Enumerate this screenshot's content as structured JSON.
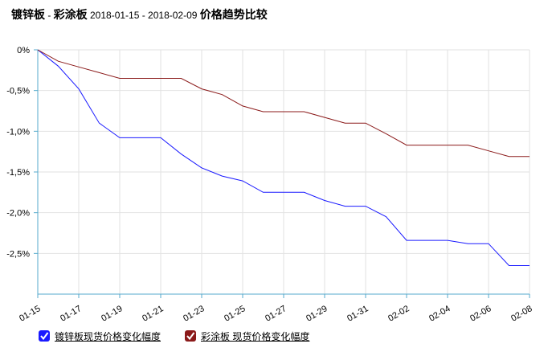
{
  "title": {
    "series_a": "镀锌板",
    "sep": " - ",
    "series_b": "彩涂板",
    "date_range": " 2018-01-15 - 2018-02-09 ",
    "suffix": "价格趋势比较"
  },
  "legend": [
    {
      "label": "镀锌板现货价格变化幅度",
      "color": "#1a1aff"
    },
    {
      "label": "彩涂板 现货价格变化幅度",
      "color": "#8b1a1a"
    }
  ],
  "chart_data": {
    "type": "line",
    "title": "镀锌板 - 彩涂板 2018-01-15 - 2018-02-09 价格趋势比较",
    "ylim": [
      -3.0,
      0.0
    ],
    "yticks": [
      0,
      -0.5,
      -1.0,
      -1.5,
      -2.0,
      -2.5
    ],
    "ytick_labels": [
      "0%",
      "-0,5%",
      "-1,0%",
      "-1,5%",
      "-2,0%",
      "-2,5%"
    ],
    "xtick_labels": [
      "01-15",
      "01-17",
      "01-19",
      "01-21",
      "01-23",
      "01-25",
      "01-27",
      "01-29",
      "01-31",
      "02-02",
      "02-04",
      "02-06",
      "02-08"
    ],
    "x": [
      "01-15",
      "01-16",
      "01-17",
      "01-18",
      "01-19",
      "01-20",
      "01-21",
      "01-22",
      "01-23",
      "01-24",
      "01-25",
      "01-26",
      "01-27",
      "01-28",
      "01-29",
      "01-30",
      "01-31",
      "02-01",
      "02-02",
      "02-03",
      "02-04",
      "02-05",
      "02-06",
      "02-07",
      "02-08"
    ],
    "series": [
      {
        "name": "镀锌板现货价格变化幅度",
        "color": "#1a1aff",
        "values": [
          0,
          -0.2,
          -0.48,
          -0.9,
          -1.08,
          -1.08,
          -1.08,
          -1.28,
          -1.45,
          -1.55,
          -1.61,
          -1.75,
          -1.75,
          -1.75,
          -1.85,
          -1.92,
          -1.92,
          -2.05,
          -2.34,
          -2.34,
          -2.34,
          -2.38,
          -2.38,
          -2.65,
          -2.65
        ]
      },
      {
        "name": "彩涂板 现货价格变化幅度",
        "color": "#8b1a1a",
        "values": [
          0,
          -0.14,
          -0.21,
          -0.28,
          -0.35,
          -0.35,
          -0.35,
          -0.35,
          -0.48,
          -0.55,
          -0.69,
          -0.76,
          -0.76,
          -0.76,
          -0.83,
          -0.9,
          -0.9,
          -1.03,
          -1.17,
          -1.17,
          -1.17,
          -1.17,
          -1.24,
          -1.31,
          -1.31
        ]
      }
    ],
    "grid": true
  }
}
